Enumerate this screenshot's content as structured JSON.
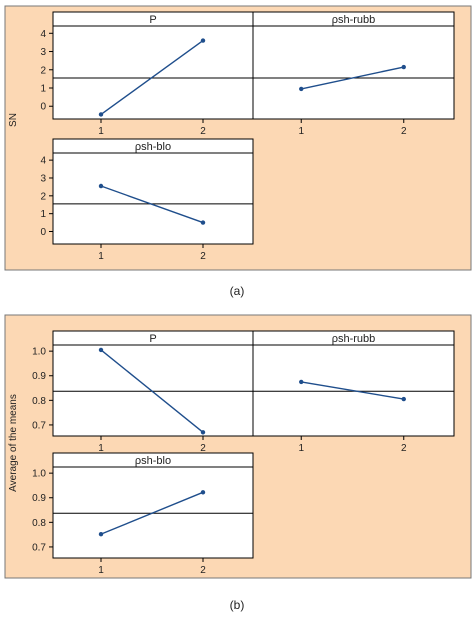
{
  "figure": {
    "captions": [
      "(a)",
      "(b)"
    ]
  },
  "chart_data": [
    {
      "id": "a",
      "type": "line",
      "ylabel": "SN",
      "ylim": [
        -0.7,
        4.4
      ],
      "yticks": [
        0,
        1,
        2,
        3,
        4
      ],
      "grid": false,
      "colors": {
        "background": "#fcd8b4",
        "line": "#1f4e8c",
        "mean_line": "#000000"
      },
      "panels": [
        {
          "title": "P",
          "categories": [
            "1",
            "2"
          ],
          "values": [
            -0.45,
            3.6
          ],
          "mean": 1.55,
          "yticks_shown": true
        },
        {
          "title": "ρsh-rubb",
          "categories": [
            "1",
            "2"
          ],
          "values": [
            0.95,
            2.15
          ],
          "mean": 1.55,
          "yticks_shown": false
        },
        {
          "title": "ρsh-blo",
          "categories": [
            "1",
            "2"
          ],
          "values": [
            2.55,
            0.5
          ],
          "mean": 1.55,
          "yticks_shown": true
        }
      ]
    },
    {
      "id": "b",
      "type": "line",
      "ylabel": "Average of the means",
      "ylim": [
        0.655,
        1.025
      ],
      "yticks": [
        "0.7",
        "0.8",
        "0.9",
        "1.0"
      ],
      "grid": false,
      "colors": {
        "background": "#fcd8b4",
        "line": "#1f4e8c",
        "mean_line": "#000000"
      },
      "panels": [
        {
          "title": "P",
          "categories": [
            "1",
            "2"
          ],
          "values": [
            1.005,
            0.67
          ],
          "mean": 0.837,
          "yticks_shown": true
        },
        {
          "title": "ρsh-rubb",
          "categories": [
            "1",
            "2"
          ],
          "values": [
            0.875,
            0.805
          ],
          "mean": 0.837,
          "yticks_shown": false
        },
        {
          "title": "ρsh-blo",
          "categories": [
            "1",
            "2"
          ],
          "values": [
            0.752,
            0.922
          ],
          "mean": 0.837,
          "yticks_shown": true
        }
      ]
    }
  ]
}
